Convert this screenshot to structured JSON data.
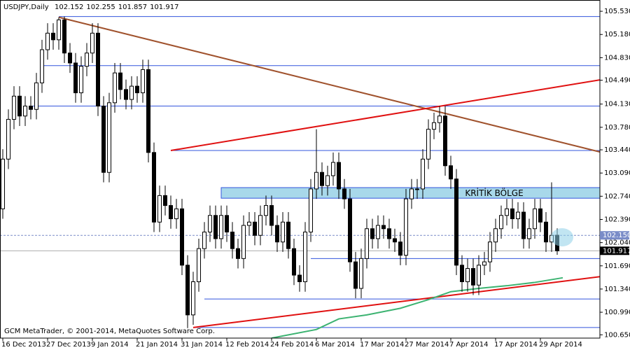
{
  "chart_data": {
    "type": "candlestick",
    "title": "USDJPY,Daily",
    "footer": "GCM MetaTrader, © 2001-2014, MetaQuotes Software Corp.",
    "categories": [
      "16 Dec 2013",
      null,
      null,
      null,
      null,
      null,
      null,
      null,
      "27 Dec 2013",
      null,
      null,
      null,
      null,
      null,
      null,
      null,
      "9 Jan 2014",
      null,
      null,
      null,
      null,
      null,
      null,
      null,
      "21 Jan 2014",
      null,
      null,
      null,
      null,
      null,
      null,
      null,
      "31 Jan 2014",
      null,
      null,
      null,
      null,
      null,
      null,
      null,
      "12 Feb 2014",
      null,
      null,
      null,
      null,
      null,
      null,
      null,
      "24 Feb 2014",
      null,
      null,
      null,
      null,
      null,
      null,
      null,
      "6 Mar 2014",
      null,
      null,
      null,
      null,
      null,
      null,
      null,
      "17 Mar 2014",
      null,
      null,
      null,
      null,
      null,
      null,
      null,
      "27 Mar 2014",
      null,
      null,
      null,
      null,
      null,
      null,
      null,
      "7 Apr 2014",
      null,
      null,
      null,
      null,
      null,
      null,
      null,
      "17 Apr 2014",
      null,
      null,
      null,
      null,
      null,
      null,
      null,
      "29 Apr 2014",
      null,
      null,
      null
    ],
    "open": [
      102.55,
      103.3,
      103.9,
      104.25,
      103.95,
      104.1,
      104.05,
      104.45,
      104.95,
      105.2,
      105.1,
      105.4,
      104.9,
      104.75,
      104.3,
      104.7,
      104.9,
      105.2,
      104.1,
      103.1,
      104.15,
      104.6,
      104.35,
      104.2,
      104.4,
      104.3,
      104.65,
      103.4,
      102.35,
      102.75,
      102.6,
      102.4,
      102.55,
      101.7,
      100.95,
      101.45,
      101.95,
      102.2,
      102.45,
      102.1,
      102.45,
      102.2,
      101.95,
      101.8,
      102.3,
      102.35,
      102.15,
      102.45,
      102.6,
      102.3,
      102.05,
      102.35,
      101.95,
      101.55,
      101.45,
      102.2,
      102.85,
      103.1,
      102.9,
      103.05,
      103.25,
      102.85,
      102.7,
      101.75,
      101.35,
      101.8,
      102.25,
      102.1,
      102.3,
      102.25,
      102.1,
      102.05,
      101.85,
      102.7,
      102.85,
      102.85,
      103.3,
      103.75,
      103.85,
      103.95,
      103.2,
      103.0,
      101.7,
      101.45,
      101.65,
      101.4,
      101.7,
      101.75,
      102.05,
      102.25,
      102.45,
      102.55,
      102.4,
      102.5,
      102.1,
      102.25,
      102.55,
      102.35,
      102.05,
      102.152
    ],
    "high": [
      103.45,
      104.05,
      104.4,
      104.4,
      104.25,
      104.25,
      104.6,
      105.1,
      105.35,
      105.35,
      105.44,
      105.45,
      105.05,
      104.9,
      104.85,
      105.05,
      105.35,
      105.35,
      104.25,
      104.3,
      104.75,
      104.75,
      104.5,
      104.55,
      104.55,
      104.8,
      104.8,
      103.55,
      102.9,
      102.9,
      102.75,
      102.7,
      102.7,
      101.85,
      101.6,
      102.1,
      102.35,
      102.6,
      102.6,
      102.6,
      102.6,
      102.35,
      102.1,
      102.45,
      102.5,
      102.5,
      102.6,
      102.75,
      102.75,
      102.45,
      102.5,
      102.5,
      102.1,
      101.7,
      102.35,
      103.0,
      103.75,
      103.25,
      103.2,
      103.4,
      103.4,
      103.0,
      102.85,
      101.9,
      101.95,
      102.4,
      102.4,
      102.45,
      102.45,
      102.4,
      102.25,
      102.2,
      102.85,
      103.0,
      103.0,
      103.45,
      103.9,
      104.0,
      104.1,
      104.1,
      103.35,
      103.15,
      101.85,
      101.8,
      101.8,
      101.85,
      101.9,
      102.2,
      102.4,
      102.6,
      102.7,
      102.7,
      102.65,
      102.65,
      102.4,
      102.7,
      102.7,
      102.5,
      102.95,
      102.255
    ],
    "low": [
      102.4,
      103.15,
      103.75,
      103.8,
      103.8,
      103.9,
      103.9,
      104.3,
      104.8,
      104.95,
      104.95,
      104.75,
      104.6,
      104.15,
      104.15,
      104.55,
      104.75,
      103.95,
      102.95,
      102.95,
      104.0,
      104.2,
      104.05,
      104.05,
      104.15,
      104.15,
      103.25,
      102.2,
      102.2,
      102.45,
      102.25,
      102.25,
      101.55,
      100.75,
      100.8,
      101.3,
      101.8,
      102.05,
      101.95,
      101.95,
      102.05,
      101.8,
      101.65,
      101.65,
      102.15,
      102.0,
      102.0,
      102.3,
      102.15,
      101.9,
      101.9,
      101.8,
      101.4,
      101.3,
      101.3,
      102.05,
      102.7,
      102.75,
      102.75,
      102.9,
      102.7,
      102.55,
      101.6,
      101.2,
      101.2,
      101.65,
      101.95,
      101.95,
      102.1,
      101.95,
      101.9,
      101.7,
      101.7,
      102.55,
      102.7,
      102.7,
      103.15,
      103.6,
      103.7,
      103.05,
      102.85,
      101.55,
      101.3,
      101.3,
      101.25,
      101.25,
      101.55,
      101.6,
      101.9,
      102.1,
      102.3,
      102.25,
      102.25,
      101.95,
      101.95,
      102.1,
      102.2,
      101.9,
      101.9,
      101.857
    ],
    "close": [
      103.3,
      103.9,
      104.25,
      103.95,
      104.1,
      104.05,
      104.45,
      104.95,
      105.2,
      105.1,
      105.4,
      104.9,
      104.75,
      104.3,
      104.7,
      104.9,
      105.2,
      104.1,
      103.1,
      104.15,
      104.6,
      104.35,
      104.2,
      104.4,
      104.3,
      104.65,
      103.4,
      102.35,
      102.75,
      102.6,
      102.4,
      102.55,
      101.7,
      100.95,
      101.45,
      101.95,
      102.2,
      102.45,
      102.1,
      102.45,
      102.2,
      101.95,
      101.8,
      102.3,
      102.35,
      102.15,
      102.45,
      102.6,
      102.3,
      102.05,
      102.35,
      101.95,
      101.55,
      101.45,
      102.2,
      102.85,
      103.1,
      102.9,
      103.05,
      103.25,
      102.85,
      102.7,
      101.75,
      101.35,
      101.8,
      102.25,
      102.1,
      102.3,
      102.25,
      102.1,
      102.05,
      101.85,
      102.7,
      102.85,
      102.85,
      103.3,
      103.75,
      103.85,
      103.95,
      103.2,
      103.0,
      101.7,
      101.45,
      101.65,
      101.4,
      101.7,
      101.75,
      102.05,
      102.25,
      102.45,
      102.55,
      102.4,
      102.5,
      102.1,
      102.25,
      102.55,
      102.35,
      102.05,
      102.15,
      101.917
    ],
    "ylim": [
      100.6,
      105.7
    ],
    "yticks": [
      {
        "value": 105.53,
        "label": "105.530"
      },
      {
        "value": 105.18,
        "label": "105.180"
      },
      {
        "value": 104.83,
        "label": "104.830"
      },
      {
        "value": 104.49,
        "label": "104.490"
      },
      {
        "value": 104.13,
        "label": "104.130"
      },
      {
        "value": 103.78,
        "label": "103.780"
      },
      {
        "value": 103.44,
        "label": "103.440"
      },
      {
        "value": 103.09,
        "label": "103.090"
      },
      {
        "value": 102.74,
        "label": "102.740"
      },
      {
        "value": 102.39,
        "label": "102.390"
      },
      {
        "value": 102.04,
        "label": "102.040"
      },
      {
        "value": 101.69,
        "label": "101.690"
      },
      {
        "value": 101.34,
        "label": "101.340"
      },
      {
        "value": 100.99,
        "label": "100.990"
      },
      {
        "value": 100.65,
        "label": "100.650"
      }
    ],
    "grid": false,
    "levels": [
      {
        "price": 105.45,
        "from": 10
      },
      {
        "price": 104.71,
        "from": 7
      },
      {
        "price": 104.1,
        "from": 5
      },
      {
        "price": 103.43,
        "from": 30
      },
      {
        "price": 101.8,
        "from": 55
      },
      {
        "price": 101.19,
        "from": 36
      },
      {
        "price": 100.76,
        "from": 34
      }
    ],
    "level_color": "#3355dd",
    "zone": {
      "label": "KRİTİK BÖLGE",
      "from": 39,
      "low": 102.71,
      "high": 102.87,
      "color": "#a8d8ea"
    },
    "trendlines": [
      {
        "from": [
          10,
          105.44
        ],
        "to": [
          107,
          103.4
        ],
        "color": "#a0522d"
      },
      {
        "from": [
          30,
          103.43
        ],
        "to": [
          107,
          104.5
        ],
        "color": "#e01010"
      },
      {
        "from": [
          34,
          100.76
        ],
        "to": [
          107,
          101.53
        ],
        "color": "#e01010"
      }
    ],
    "moving_average": {
      "color": "#3cb371",
      "x": [
        48,
        56,
        60,
        65,
        71,
        76,
        80,
        85,
        90,
        95,
        100
      ],
      "values": [
        100.6,
        100.73,
        100.89,
        100.95,
        101.05,
        101.18,
        101.3,
        101.35,
        101.39,
        101.44,
        101.51
      ]
    },
    "price_lines": [
      {
        "value": 102.15,
        "label": "102.150",
        "color": "#7a8cc8"
      },
      {
        "value": 101.917,
        "label": "101.917",
        "color": "#000000"
      }
    ]
  }
}
